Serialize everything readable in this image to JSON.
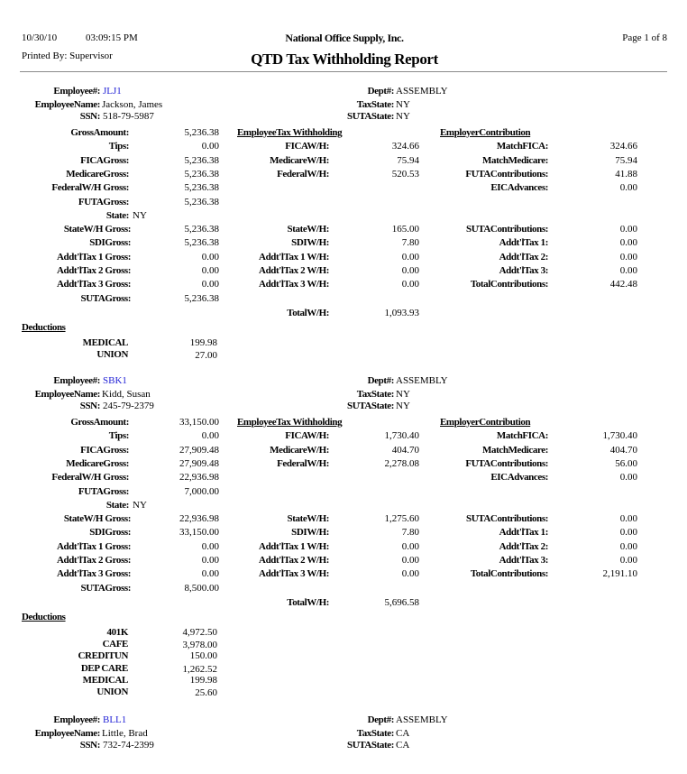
{
  "header": {
    "date": "10/30/10",
    "time": "03:09:15 PM",
    "printed_by": "Printed By: Supervisor",
    "company": "National Office Supply, Inc.",
    "title": "QTD Tax Withholding Report",
    "page": "Page 1 of  8"
  },
  "labels": {
    "employee_no": "Employee#:",
    "employee_name": "EmployeeName:",
    "ssn": "SSN:",
    "dept": "Dept#:",
    "tax_state": "TaxState:",
    "suta_state": "SUTAState:",
    "gross": [
      "GrossAmount:",
      "Tips:",
      "FICAGross:",
      "MedicareGross:",
      "FederalW/H Gross:",
      "FUTAGross:"
    ],
    "state": "State:",
    "gross2": [
      "StateW/H Gross:",
      "SDIGross:",
      "Addt'lTax 1 Gross:",
      "Addt'lTax 2 Gross:",
      "Addt'lTax 3 Gross:"
    ],
    "suta_gross": "SUTAGross:",
    "emp_wh_header": "EmployeeTax Withholding",
    "emp_wh": [
      "FICAW/H:",
      "MedicareW/H:",
      "FederalW/H:"
    ],
    "emp_wh2": [
      "StateW/H:",
      "SDIW/H:",
      "Addt'lTax 1 W/H:",
      "Addt'lTax 2 W/H:",
      "Addt'lTax 3 W/H:"
    ],
    "total_wh": "TotalW/H:",
    "er_header": "EmployerContribution",
    "er": [
      "MatchFICA:",
      "MatchMedicare:",
      "FUTAContributions:",
      "EICAdvances:"
    ],
    "er2": [
      "SUTAContributions:",
      "Addt'lTax 1:",
      "Addt'lTax 2:",
      "Addt'lTax 3:",
      "TotalContributions:"
    ],
    "deductions": "Deductions"
  },
  "employees": [
    {
      "id": "JLJ1",
      "name": "Jackson, James",
      "ssn": "518-79-5987",
      "dept": "ASSEMBLY",
      "tax_state": "NY",
      "suta_state": "NY",
      "gross": [
        "5,236.38",
        "0.00",
        "5,236.38",
        "5,236.38",
        "5,236.38",
        "5,236.38"
      ],
      "state": "NY",
      "gross2": [
        "5,236.38",
        "5,236.38",
        "0.00",
        "0.00",
        "0.00"
      ],
      "suta_gross": "5,236.38",
      "emp_wh": [
        "324.66",
        "75.94",
        "520.53"
      ],
      "emp_wh2": [
        "165.00",
        "7.80",
        "0.00",
        "0.00",
        "0.00"
      ],
      "total_wh": "1,093.93",
      "er": [
        "324.66",
        "75.94",
        "41.88",
        "0.00"
      ],
      "er2": [
        "0.00",
        "0.00",
        "0.00",
        "0.00",
        "442.48"
      ],
      "deductions": [
        {
          "name": "MEDICAL",
          "amount": "199.98"
        },
        {
          "name": "UNION",
          "amount": "27.00"
        }
      ]
    },
    {
      "id": "SBK1",
      "name": "Kidd, Susan",
      "ssn": "245-79-2379",
      "dept": "ASSEMBLY",
      "tax_state": "NY",
      "suta_state": "NY",
      "gross": [
        "33,150.00",
        "0.00",
        "27,909.48",
        "27,909.48",
        "22,936.98",
        "7,000.00"
      ],
      "state": "NY",
      "gross2": [
        "22,936.98",
        "33,150.00",
        "0.00",
        "0.00",
        "0.00"
      ],
      "suta_gross": "8,500.00",
      "emp_wh": [
        "1,730.40",
        "404.70",
        "2,278.08"
      ],
      "emp_wh2": [
        "1,275.60",
        "7.80",
        "0.00",
        "0.00",
        "0.00"
      ],
      "total_wh": "5,696.58",
      "er": [
        "1,730.40",
        "404.70",
        "56.00",
        "0.00"
      ],
      "er2": [
        "0.00",
        "0.00",
        "0.00",
        "0.00",
        "2,191.10"
      ],
      "deductions": [
        {
          "name": "401K",
          "amount": "4,972.50"
        },
        {
          "name": "CAFE",
          "amount": "3,978.00"
        },
        {
          "name": "CREDITUN",
          "amount": "150.00"
        },
        {
          "name": "DEP CARE",
          "amount": "1,262.52"
        },
        {
          "name": "MEDICAL",
          "amount": "199.98"
        },
        {
          "name": "UNION",
          "amount": "25.60"
        }
      ]
    },
    {
      "id": "BLL1",
      "name": "Little, Brad",
      "ssn": "732-74-2399",
      "dept": "ASSEMBLY",
      "tax_state": "CA",
      "suta_state": "CA"
    }
  ]
}
